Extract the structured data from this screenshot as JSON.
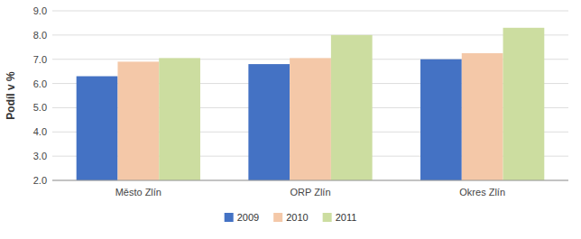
{
  "chart_data": {
    "type": "bar",
    "ylabel": "Podíl v %",
    "categories": [
      "Město Zlín",
      "ORP Zlín",
      "Okres Zlín"
    ],
    "series": [
      {
        "name": "2009",
        "color": "#4472C4",
        "values": [
          6.3,
          6.8,
          7.0
        ]
      },
      {
        "name": "2010",
        "color": "#F4C8A8",
        "values": [
          6.9,
          7.05,
          7.25
        ]
      },
      {
        "name": "2011",
        "color": "#CCDDA0",
        "values": [
          7.05,
          8.0,
          8.3
        ]
      }
    ],
    "ylim": [
      2.0,
      9.0
    ],
    "yticks": [
      {
        "value": 2.0,
        "label": "2.0"
      },
      {
        "value": 3.0,
        "label": "3.0"
      },
      {
        "value": 4.0,
        "label": "4.0"
      },
      {
        "value": 5.0,
        "label": "5.0"
      },
      {
        "value": 6.0,
        "label": "6.0"
      },
      {
        "value": 7.0,
        "label": "7.0"
      },
      {
        "value": 8.0,
        "label": "8.0"
      },
      {
        "value": 9.0,
        "label": "9.0"
      }
    ],
    "grid": true,
    "legend": "bottom"
  }
}
